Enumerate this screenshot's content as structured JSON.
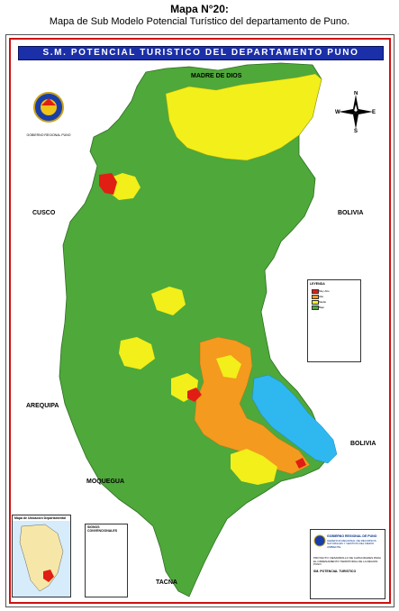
{
  "document": {
    "title": "Mapa N°20:",
    "caption": "Mapa de Sub Modelo Potencial Turístico del departamento de Puno."
  },
  "map": {
    "banner": "S.M. POTENCIAL TURISTICO DEL DEPARTAMENTO PUNO",
    "neighbors": {
      "north": "MADRE DE DIOS",
      "northwest": "CUSCO",
      "west": "AREQUIPA",
      "southwest": "MOQUEGUA",
      "south": "TACNA",
      "east_top": "BOLIVIA",
      "east_bottom": "BOLIVIA"
    },
    "compass": {
      "n": "N",
      "s": "S",
      "e": "E",
      "w": "W"
    },
    "colors": {
      "very_high": "#e01e14",
      "high": "#f39a1f",
      "medium": "#f2ef1a",
      "low": "#4fa83a",
      "lake": "#2fb7ef",
      "banner": "#1a2fa8",
      "frame": "#d01010"
    },
    "logo_caption": "GOBIERNO REGIONAL PUNO",
    "legend": {
      "title": "LEYENDA",
      "items": [
        {
          "label": "Muy Alto",
          "color": "#e01e14"
        },
        {
          "label": "Alto",
          "color": "#f39a1f"
        },
        {
          "label": "Medio",
          "color": "#f2ef1a"
        },
        {
          "label": "Bajo",
          "color": "#4fa83a"
        }
      ]
    },
    "locator": {
      "title": "Mapa de Ubicación Departamental"
    },
    "conventions": {
      "title": "SIGNOS CONVENCIONALES"
    },
    "title_block": {
      "org": "GOBIERNO REGIONAL DE PUNO",
      "sub": "GERENCIA REGIONAL DE RECURSOS NATURALES Y GESTION DEL MEDIO AMBIENTE",
      "project": "PROYECTO: DESARROLLO DE CAPACIDADES PARA EL ORDENAMIENTO TERRITORIAL DE LA REGION PUNO",
      "map_name": "SM. POTENCIAL TURISTICO"
    }
  }
}
